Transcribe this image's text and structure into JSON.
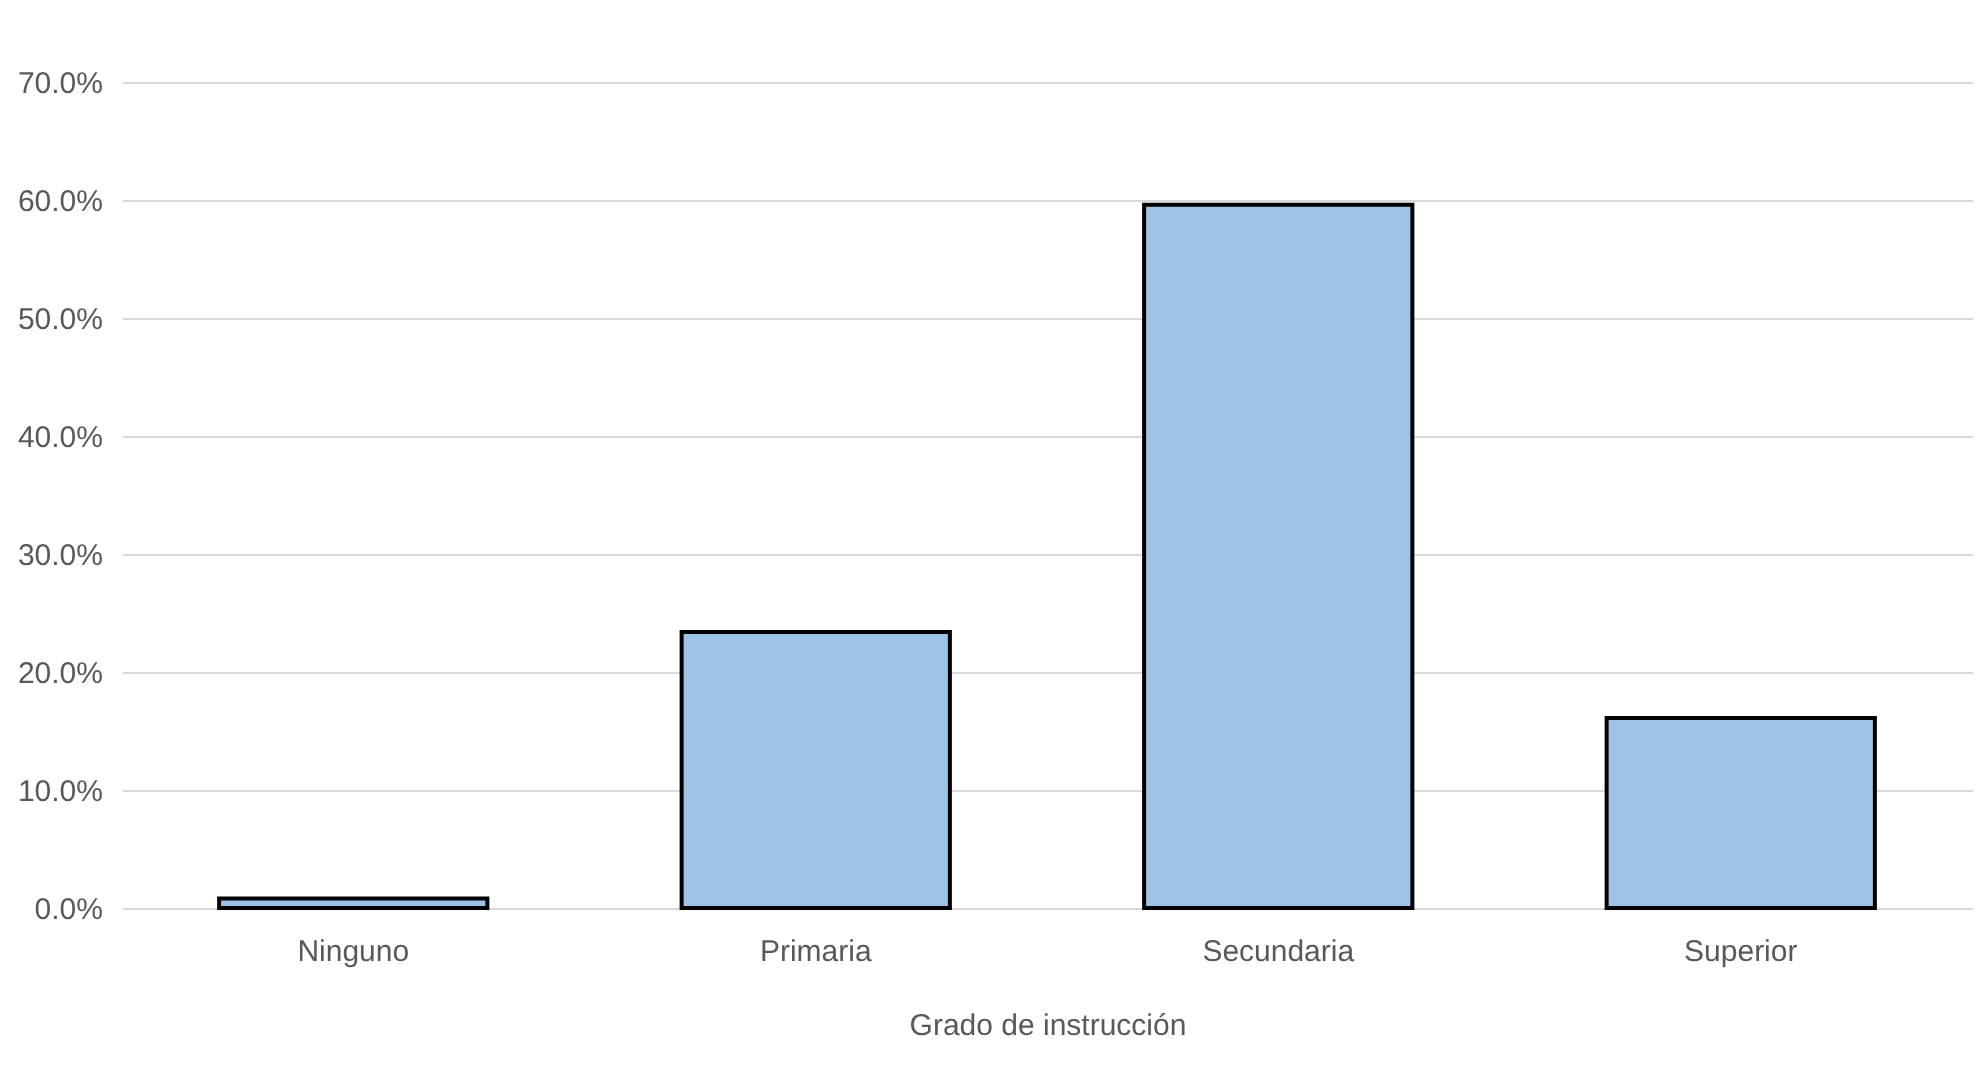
{
  "chart_data": {
    "type": "bar",
    "xlabel": "Grado de instrucción",
    "categories": [
      "Ninguno",
      "Primaria",
      "Secundaria",
      "Superior"
    ],
    "values": [
      0.8,
      23.4,
      59.6,
      16.1
    ],
    "color": "#9dc3e6",
    "ylim": [
      0,
      70
    ],
    "yticks": [
      {
        "value": 0,
        "label": "0.0%"
      },
      {
        "value": 10,
        "label": "10.0%"
      },
      {
        "value": 20,
        "label": "20.0%"
      },
      {
        "value": 30,
        "label": "30.0%"
      },
      {
        "value": 40,
        "label": "40.0%"
      },
      {
        "value": 50,
        "label": "50.0%"
      },
      {
        "value": 60,
        "label": "60.0%"
      },
      {
        "value": 70,
        "label": "70.0%"
      }
    ],
    "grid": true
  }
}
